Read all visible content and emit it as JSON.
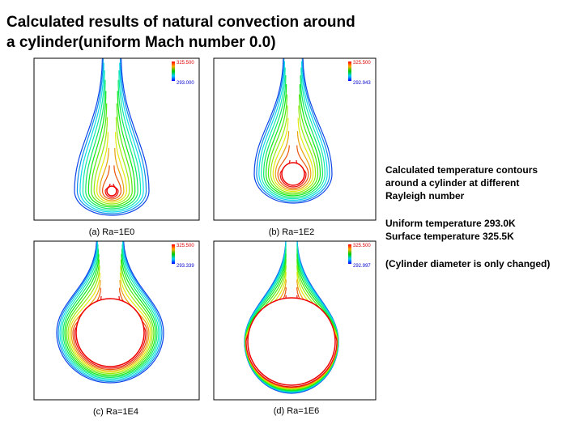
{
  "header": {
    "title_lines": [
      "Calculated results of natural convection around",
      "a cylinder(uniform Mach number 0.0)"
    ]
  },
  "panels": [
    {
      "label": "(a)  Ra=1E0",
      "colorbar_max": "325.500",
      "colorbar_min": "293.000"
    },
    {
      "label": "(b)  Ra=1E2",
      "colorbar_max": "325.500",
      "colorbar_min": "292.943"
    },
    {
      "label": "(c)  Ra=1E4",
      "colorbar_max": "325.500",
      "colorbar_min": "293.339"
    },
    {
      "label": "(d)  Ra=1E6",
      "colorbar_max": "325.500",
      "colorbar_min": "292.997"
    }
  ],
  "notes": {
    "lines": [
      "Calculated temperature contours",
      "around a cylinder at different",
      "Rayleigh number",
      "Uniform temperature 293.0K",
      "Surface temperature 325.5K",
      "(Cylinder diameter is only changed)"
    ]
  }
}
